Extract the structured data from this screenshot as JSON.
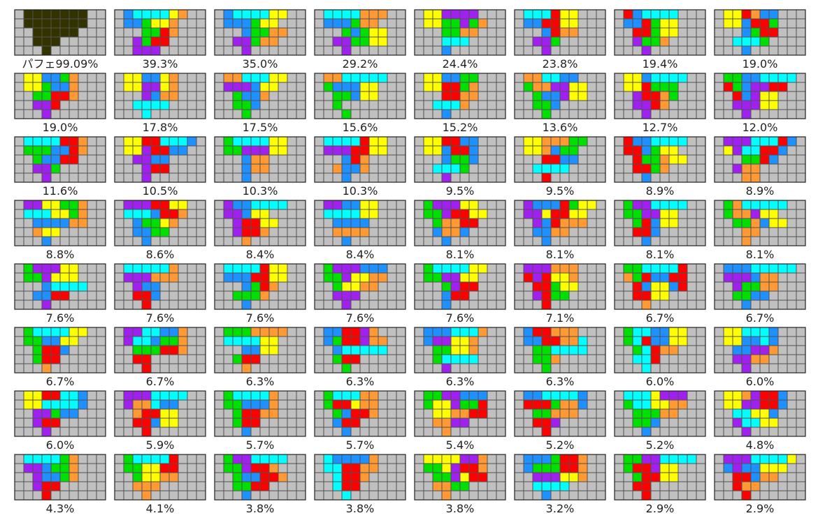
{
  "panels": [
    {
      "label": "パフェ99.09%",
      "cells": [
        ".XXXXXXX..",
        ".XXXXXXX..",
        "..XXXXX...",
        "..XXX.....",
        "...X......"
      ]
    },
    {
      "label": "39.3%",
      "cells": [
        ".JIIIIOL..",
        ".JJSOOL...",
        "...SSZL...",
        "..TSZZ....",
        "..TTT....."
      ]
    },
    {
      "label": "35.0%",
      "cells": [
        ".JIIIIOO..",
        ".JJJSOO...",
        "...JSSLL..",
        "..TTSLL...",
        "...T......"
      ]
    },
    {
      "label": "29.2%",
      "cells": [
        ".IIIILLL..",
        ".JJJSLL...",
        "...SJSOO..",
        "..TTSSOO..",
        "...T......"
      ]
    },
    {
      "label": "24.4%",
      "cells": [
        ".OOTTTT...",
        ".OOSSTSL..",
        "...SSLL...",
        "...III....",
        "...J......"
      ]
    },
    {
      "label": "23.8%",
      "cells": [
        ".IIIZOO...",
        ".JJZZOO...",
        "...JZLL...",
        "..TTS.....",
        "...T......"
      ]
    },
    {
      "label": "19.4%",
      "cells": [
        ".ZJIIII...",
        ".JJZSOO...",
        "..ZZSOO...",
        "..TSSL....",
        "...T......"
      ]
    },
    {
      "label": "19.0%",
      "cells": [
        ".OOZLJJ...",
        ".OOJZZS...",
        "...JSZZ...",
        "..IIIS....",
        "...J......"
      ]
    },
    {
      "label": "19.0%",
      "cells": [
        ".OOJJSL...",
        ".OOSJJL...",
        "..SSZZL...",
        "..TTZ.....",
        "...T......"
      ]
    },
    {
      "label": "17.8%",
      "cells": [
        ".OOJJOL...",
        ".OOTTOL...",
        "...TJLL...",
        "..IIII....",
        "...I......"
      ]
    },
    {
      "label": "17.5%",
      "cells": [
        ".LLIIIOO..",
        ".TTTJOO...",
        "..SJJL....",
        "..SSJ.....",
        "...S......"
      ]
    },
    {
      "label": "15.6%",
      "cells": [
        ".LLIIIII..",
        ".SJJJOO...",
        "..SSJOO...",
        "..S.......",
        "...S......"
      ]
    },
    {
      "label": "15.2%",
      "cells": [
        ".OOJJSS...",
        ".OOZZSL...",
        "...ZZLL...",
        "..IIIL....",
        "...J......"
      ]
    },
    {
      "label": "13.6%",
      "cells": [
        ".LLIIJJ...",
        ".SLLTTOO..",
        "..SJJTOO..",
        "..SSJ.....",
        "...S......"
      ]
    },
    {
      "label": "12.7%",
      "cells": [
        ".OOJIIII..",
        ".OOZSSS...",
        "..TZZLS...",
        "..TTZL....",
        "...T......"
      ]
    },
    {
      "label": "12.0%",
      "cells": [
        ".SSJJIIII.",
        ".ZSJTTZZ..",
        "..ZJTOO...",
        "..TTTOO...",
        "...T......"
      ]
    },
    {
      "label": "11.6%",
      "cells": [
        ".IIIIZZL..",
        ".SSSJJZL..",
        "..SJJZZ...",
        "..TTS.....",
        "...T......"
      ]
    },
    {
      "label": "10.5%",
      "cells": [
        ".OOZZIIIJ.",
        ".OOTZZJJ..",
        "..TTJJ....",
        "...TZZ....",
        "...T......"
      ]
    },
    {
      "label": "10.3%",
      "cells": [
        ".SIIIIOO..",
        ".SSTTTOO..",
        "...JLL....",
        "...JLL....",
        "...J......"
      ]
    },
    {
      "label": "10.3%",
      "cells": [
        ".IIIIZOO..",
        ".TTTZZOO..",
        "...JZL....",
        "..LJJL....",
        "...J......"
      ]
    },
    {
      "label": "9.5%",
      "cells": [
        ".OOZZJJ...",
        ".OOJZZJ...",
        "...JSSJ...",
        "..IIIS....",
        "...T......"
      ]
    },
    {
      "label": "9.5%",
      "cells": [
        ".OOLLLSS..",
        ".OOLJSS...",
        "...ZZJJ...",
        "..IIII....",
        "...Z......"
      ]
    },
    {
      "label": "8.9%",
      "cells": [
        ".ZJJIIII..",
        ".ZZJSOO...",
        "..ZSSLOO..",
        "..ZZSL....",
        "...J......"
      ]
    },
    {
      "label": "8.9%",
      "cells": [
        ".TTTIIIZJ.",
        ".OTIIZZJ..",
        "...SSZJ...",
        "..TLL.....",
        "...LL....."
      ]
    },
    {
      "label": "8.8%",
      "cells": [
        ".TTOOSSL..",
        ".IIIOOSL..",
        "..JJJJLL..",
        "..LOO.....",
        "...J......"
      ]
    },
    {
      "label": "8.6%",
      "cells": [
        ".TTTZZOO..",
        ".IIIJZZL..",
        "..JSSOL...",
        "..JJSS....",
        "...J......"
      ]
    },
    {
      "label": "8.4%",
      "cells": [
        ".TJJIIII..",
        ".TTJOO....",
        "..TZZOO...",
        "..TZZL....",
        "...L......"
      ]
    },
    {
      "label": "8.4%",
      "cells": [
        ".TTJJOO...",
        ".IIIIOO...",
        "..JJJJ....",
        "..LLLL....",
        "...J......"
      ]
    },
    {
      "label": "8.1%",
      "cells": [
        ".STTTOO...",
        ".SSTZZOO..",
        "..SLLZZ...",
        "..JLLJ....",
        "...J......"
      ]
    },
    {
      "label": "8.1%",
      "cells": [
        ".TJJJZSOO.",
        ".TTOZZOO..",
        "..TJZLLL..",
        "..JJLL....",
        "...J......"
      ]
    },
    {
      "label": "8.1%",
      "cells": [
        ".STTIIII..",
        ".SSTTOO...",
        "..SZJOO...",
        "..ZZJ.....",
        "...J......"
      ]
    },
    {
      "label": "8.1%",
      "cells": [
        ".SLIIIII..",
        ".SLLTOO...",
        "..SSLJOO..",
        "...LL.....",
        "...L......"
      ]
    },
    {
      "label": "7.6%",
      "cells": [
        ".STTTOO...",
        ".SSTOOO...",
        "...JIIII..",
        "..JJZZ....",
        "...T......"
      ]
    },
    {
      "label": "7.6%",
      "cells": [
        ".IIIIIL...",
        ".TTTLLL...",
        "..TJJ.....",
        "..ZZJ.....",
        "...Z......"
      ]
    },
    {
      "label": "7.6%",
      "cells": [
        ".IIIIZOO..",
        ".JJJZZOO..",
        "...JSZL...",
        "..SSSL....",
        "...J......"
      ]
    },
    {
      "label": "7.6%",
      "cells": [
        ".STTTJJJ..",
        ".SSTOOLL..",
        "..SOOLL...",
        "..TTT.....",
        "...T......"
      ]
    },
    {
      "label": "7.6%",
      "cells": [
        ".SIIIIOO..",
        ".SSTTOO...",
        "...STZZ...",
        "...JZZ....",
        "...J......"
      ]
    },
    {
      "label": "7.1%",
      "cells": [
        ".TTTLLL...",
        ".ZTZOOL...",
        "..ZZSOO...",
        "..TZSS....",
        "...Z......"
      ]
    },
    {
      "label": "6.7%",
      "cells": [
        ".SSIIIIZ..",
        ".LSZJJZZ..",
        "..ZJOOJZ..",
        "..ZZOO....",
        "...L......"
      ]
    },
    {
      "label": "6.7%",
      "cells": [
        ".JJJIIIII.",
        ".TTTJLL...",
        "..TSSLL...",
        "..SSJJ....",
        "...J......"
      ]
    },
    {
      "label": "6.7%",
      "cells": [
        ".SIIIIOO..",
        ".SSJJOO...",
        "..SZZJ....",
        "..SZZ.....",
        "...L......"
      ]
    },
    {
      "label": "6.7%",
      "cells": [
        ".TTIIJJL..",
        ".TIIJSSL..",
        "..SSSZZL..",
        "..ZZ......",
        "...Z......"
      ]
    },
    {
      "label": "6.3%",
      "cells": [
        ".SSSLLLL..",
        ".IIIIOO...",
        "...JJOO...",
        "..SZZ.....",
        "...L......"
      ]
    },
    {
      "label": "6.3%",
      "cells": [
        ".JJZZTL...",
        ".JSZZTLL..",
        "..JIIIII..",
        "..SZZ.....",
        "...S......"
      ]
    },
    {
      "label": "6.3%",
      "cells": [
        ".JJJIIIL..",
        ".JTTOOL...",
        "..SSOOL...",
        "..SIIII...",
        "...T......"
      ]
    },
    {
      "label": "6.3%",
      "cells": [
        ".JZZLLL...",
        ".JJZZLLI..",
        "..SSIIII..",
        "..SSL.....",
        "...S......"
      ]
    },
    {
      "label": "6.0%",
      "cells": [
        ".SIIJJOO..",
        ".SIZJJOO..",
        "..SIZLL...",
        "..IIZ.....",
        "...I......"
      ]
    },
    {
      "label": "6.0%",
      "cells": [
        ".OOIIIJ...",
        ".OOJJIJ...",
        "..JJTTL...",
        "..TTLL....",
        "...T......"
      ]
    },
    {
      "label": "6.0%",
      "cells": [
        ".OOZZIIJ..",
        ".OOIIIIJ..",
        "..TTSJJ...",
        "..TZZ.....",
        "...T......"
      ]
    },
    {
      "label": "5.9%",
      "cells": [
        ".TTTIIII..",
        ".TLLIJJ...",
        "..LZZOO...",
        "..ZZJOO...",
        "...Z......"
      ]
    },
    {
      "label": "5.7%",
      "cells": [
        ".SIIIIL...",
        ".SSJJJL...",
        "..SZZLL...",
        "..SZZ.....",
        "...J......"
      ]
    },
    {
      "label": "5.7%",
      "cells": [
        ".SIIILL...",
        ".SZZOLL...",
        "..SJZZL...",
        "..JZZ.....",
        "...J......"
      ]
    },
    {
      "label": "5.4%",
      "cells": [
        ".SSTTJJJ..",
        ".SOOTSSZ..",
        "..OOLLZZ..",
        "..LLTT....",
        "...L......"
      ]
    },
    {
      "label": "5.2%",
      "cells": [
        ".JJIIIIJ..",
        ".ZZZSLLJ..",
        "..SSLLL...",
        "..ZZT.....",
        "...Z......"
      ]
    },
    {
      "label": "5.2%",
      "cells": [
        ".IIIOTTT..",
        ".SIIOOLL..",
        "..SSSLL...",
        "..SSJ.....",
        "...J......"
      ]
    },
    {
      "label": "4.8%",
      "cells": [
        ".OOLTZZJ..",
        ".OOTTZZJ..",
        "..IIOOJ...",
        "..TIIOO...",
        "...T......"
      ]
    },
    {
      "label": "4.3%",
      "cells": [
        ".IIIISL...",
        ".TTJSSL...",
        "..TJJSL...",
        "..TZZ.....",
        "...Z......"
      ]
    },
    {
      "label": "4.1%",
      "cells": [
        ".SIIIIZ...",
        ".SSOOZZ...",
        "..SOOLL...",
        "..LLL.....",
        "...L......"
      ]
    },
    {
      "label": "3.8%",
      "cells": [
        ".STTIIII..",
        ".SSTZZL...",
        "..SJJZZL..",
        "..SSZZ....",
        "...J......"
      ]
    },
    {
      "label": "3.8%",
      "cells": [
        ".IJJJJL...",
        ".IIZZLL...",
        "..IZZL....",
        "..IZZ.....",
        "...I......"
      ]
    },
    {
      "label": "3.8%",
      "cells": [
        ".OOOOTTL..",
        ".SSOTZZL..",
        "..SSTOZZ..",
        "..LLSS....",
        "...L......"
      ]
    },
    {
      "label": "3.2%",
      "cells": [
        ".JJJSZZL..",
        ".JSSSZZL..",
        "..TTTOOL..",
        "..IIII....",
        "...J......"
      ]
    },
    {
      "label": "2.9%",
      "cells": [
        ".SSTTIIII.",
        ".SZZTOO...",
        "..SZZOO...",
        "..ZZ......",
        "...Z......"
      ]
    },
    {
      "label": "2.9%",
      "cells": [
        ".TTTIIIIO.",
        ".JTJJOOO..",
        "..ZZJLL...",
        "..ZLL.....",
        "...Z......"
      ]
    }
  ]
}
